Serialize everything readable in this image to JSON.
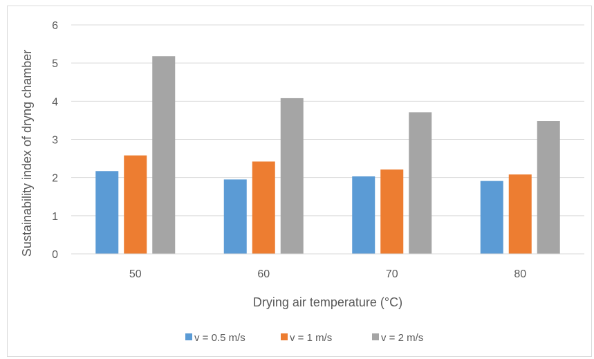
{
  "chart_data": {
    "type": "bar",
    "title": "",
    "xlabel": "Drying air temperature (°C)",
    "ylabel": "Sustainability index of dryng chamber",
    "categories": [
      "50",
      "60",
      "70",
      "80"
    ],
    "series": [
      {
        "name": "v = 0.5 m/s",
        "color": "#5b9bd5",
        "values": [
          2.17,
          1.95,
          2.03,
          1.91
        ]
      },
      {
        "name": "v = 1 m/s",
        "color": "#ed7d31",
        "values": [
          2.58,
          2.42,
          2.21,
          2.08
        ]
      },
      {
        "name": "v = 2 m/s",
        "color": "#a5a5a5",
        "values": [
          5.18,
          4.08,
          3.71,
          3.48
        ]
      }
    ],
    "ylim": [
      0,
      6
    ],
    "yticks": [
      "0",
      "1",
      "2",
      "3",
      "4",
      "5",
      "6"
    ],
    "grid": true,
    "legend_position": "bottom"
  }
}
